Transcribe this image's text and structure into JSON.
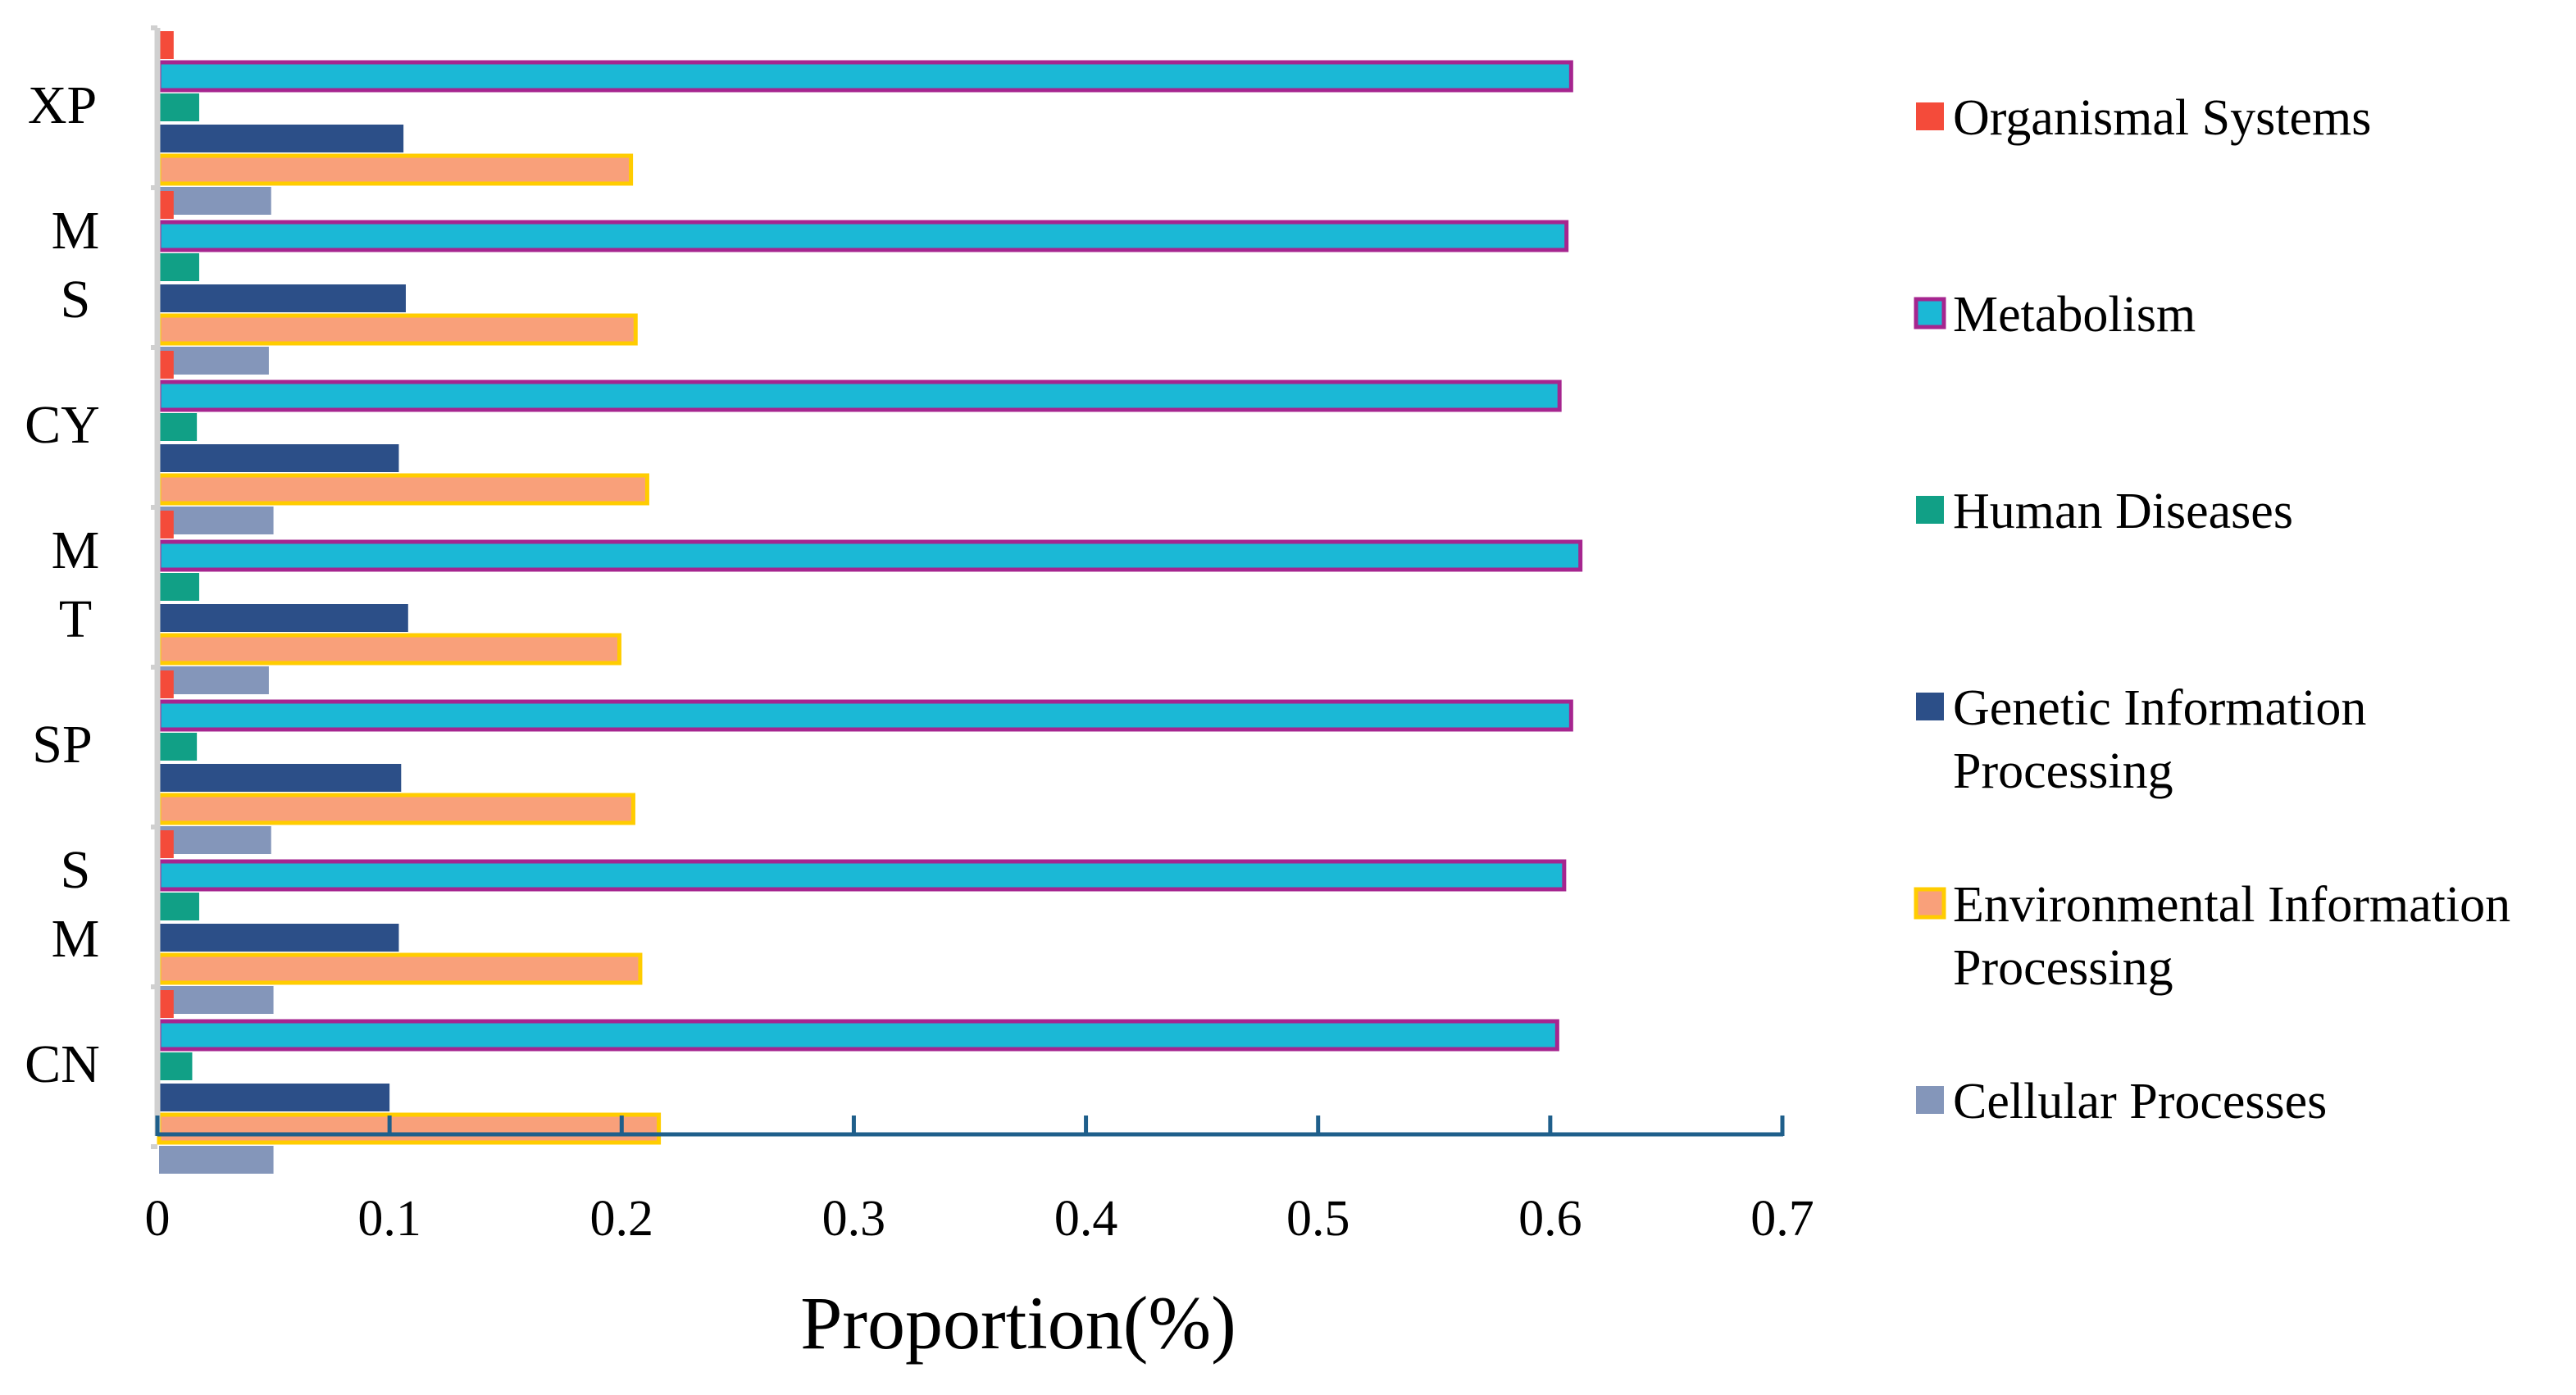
{
  "chart_data": {
    "type": "bar",
    "orientation": "horizontal",
    "title": "",
    "xlabel": "Proportion(%)",
    "ylabel": "",
    "xlim": [
      0,
      0.7
    ],
    "x_ticks": [
      "0",
      "0.1",
      "0.2",
      "0.3",
      "0.4",
      "0.5",
      "0.6",
      "0.7"
    ],
    "x_tick_values": [
      0,
      0.1,
      0.2,
      0.3,
      0.4,
      0.5,
      0.6,
      0.7
    ],
    "grid": false,
    "legend_position": "right",
    "categories": [
      {
        "key": "XP",
        "lines": [
          "XP"
        ]
      },
      {
        "key": "MS",
        "lines": [
          "M",
          "S"
        ]
      },
      {
        "key": "CY",
        "lines": [
          "CY"
        ]
      },
      {
        "key": "MT",
        "lines": [
          "M",
          "T"
        ]
      },
      {
        "key": "SP",
        "lines": [
          "SP"
        ]
      },
      {
        "key": "SM",
        "lines": [
          "S",
          "M"
        ]
      },
      {
        "key": "CN",
        "lines": [
          "CN"
        ]
      }
    ],
    "series": [
      {
        "name": "Organismal Systems",
        "label_lines": [
          "Organismal Systems"
        ],
        "fill": "#F44B3A",
        "stroke": "#F44B3A",
        "values": [
          0.007,
          0.007,
          0.007,
          0.007,
          0.007,
          0.007,
          0.007
        ]
      },
      {
        "name": "Metabolism",
        "label_lines": [
          "Metabolism"
        ],
        "fill": "#1BB8D6",
        "stroke": "#A6258F",
        "values": [
          0.609,
          0.607,
          0.604,
          0.613,
          0.609,
          0.606,
          0.603
        ]
      },
      {
        "name": "Human Diseases",
        "label_lines": [
          "Human Diseases"
        ],
        "fill": "#11A086",
        "stroke": "#11A086",
        "values": [
          0.018,
          0.018,
          0.017,
          0.018,
          0.017,
          0.018,
          0.015
        ]
      },
      {
        "name": "Genetic Information Processing",
        "label_lines": [
          "Genetic Information",
          "Processing"
        ],
        "fill": "#2C4F88",
        "stroke": "#2C4F88",
        "values": [
          0.106,
          0.107,
          0.104,
          0.108,
          0.105,
          0.104,
          0.1
        ]
      },
      {
        "name": "Environmental Information Processing",
        "label_lines": [
          "Environmental Information",
          "Processing"
        ],
        "fill": "#F9A07A",
        "stroke": "#FFCC00",
        "values": [
          0.204,
          0.206,
          0.211,
          0.199,
          0.205,
          0.208,
          0.216
        ]
      },
      {
        "name": "Cellular Processes",
        "label_lines": [
          "Cellular Processes"
        ],
        "fill": "#8496BA",
        "stroke": "#8496BA",
        "values": [
          0.049,
          0.048,
          0.05,
          0.048,
          0.049,
          0.05,
          0.05
        ]
      }
    ]
  }
}
